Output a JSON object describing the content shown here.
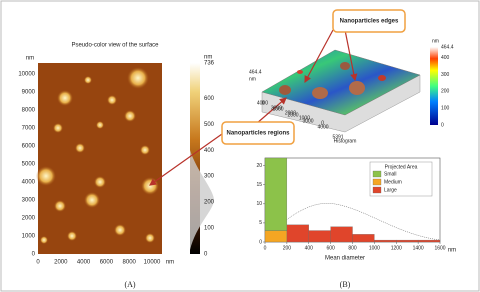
{
  "panel_a": {
    "title": "Pseudo-color view of the surface",
    "y_unit": "nm",
    "yticks": [
      0,
      1000,
      2000,
      3000,
      4000,
      5000,
      6000,
      7000,
      8000,
      9000,
      10000
    ],
    "xticks": [
      0,
      2000,
      4000,
      6000,
      8000,
      10000
    ],
    "x_unit": "nm",
    "colorbar": {
      "unit": "nm",
      "ticks": [
        736,
        600,
        500,
        400,
        300,
        200,
        100,
        0
      ]
    },
    "caption": "(A)"
  },
  "panel_b": {
    "callouts": [
      "Nanoparticles edges",
      "Nanoparticles regions"
    ],
    "surface": {
      "z_max": 464.4,
      "z_unit": "nm",
      "y_ticks": [
        4000,
        3000,
        2000,
        1000,
        0
      ],
      "x_ticks": [
        5391,
        4000,
        3000,
        2000,
        1000,
        0
      ],
      "title": "Histogram"
    },
    "colorbar": {
      "unit": "nm",
      "ticks": [
        464.4,
        400,
        300,
        200,
        100,
        0
      ]
    },
    "caption": "(B)"
  },
  "chart_data": {
    "type": "histogram",
    "bins": [
      0,
      200,
      400,
      600,
      800,
      1000,
      1200,
      1400,
      1600
    ],
    "series": [
      {
        "name": "Small",
        "color": "#8cc24a",
        "values": [
          19,
          0,
          0,
          0,
          0,
          0,
          0,
          0
        ]
      },
      {
        "name": "Medium",
        "color": "#f5a623",
        "values": [
          3,
          0,
          0,
          0,
          0,
          0,
          0,
          0
        ]
      },
      {
        "name": "Large",
        "color": "#e0452b",
        "values": [
          0,
          4.5,
          3,
          4,
          2,
          0.5,
          0.5,
          0.5
        ]
      }
    ],
    "legend_title": "Projected Area",
    "x_label": "Mean diameter",
    "x_unit": "nm",
    "xlim": [
      0,
      1600
    ],
    "ylim": [
      0,
      22
    ],
    "yticks": [
      0,
      5,
      10,
      15,
      20
    ],
    "xticks": [
      0,
      200,
      400,
      600,
      800,
      1000,
      1200,
      1400,
      1600
    ]
  }
}
